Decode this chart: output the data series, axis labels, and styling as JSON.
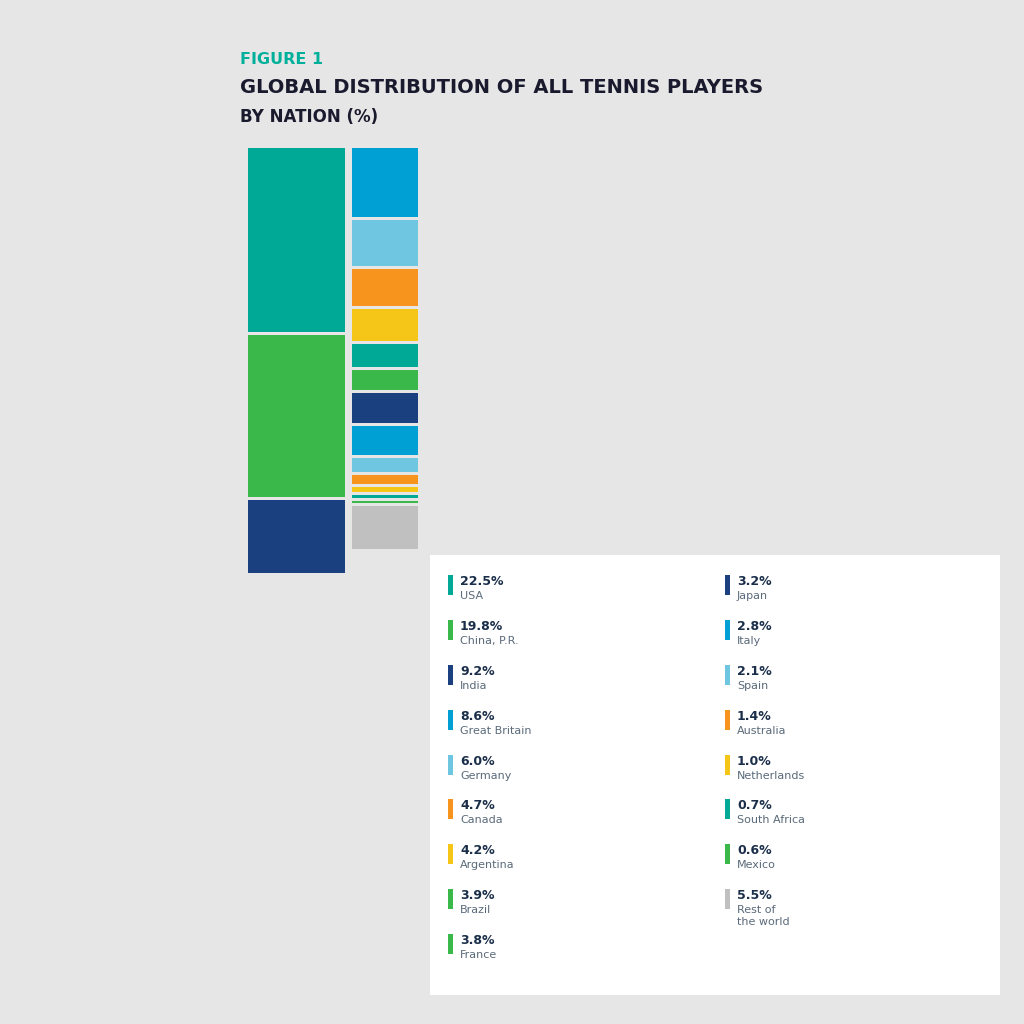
{
  "title_figure": "FIGURE 1",
  "title_main": "GLOBAL DISTRIBUTION OF ALL TENNIS PLAYERS",
  "title_sub": "BY NATION (%)",
  "background_color": "#e6e6e6",
  "left_col": [
    {
      "name": "USA",
      "value": 22.5,
      "color": "#00A896"
    },
    {
      "name": "China, P.R.",
      "value": 19.8,
      "color": "#3BB84A"
    },
    {
      "name": "India",
      "value": 9.2,
      "color": "#1B4080"
    }
  ],
  "right_col": [
    {
      "name": "Great Britain",
      "value": 8.6,
      "color": "#009FD4"
    },
    {
      "name": "Germany",
      "value": 6.0,
      "color": "#6EC6E0"
    },
    {
      "name": "Canada",
      "value": 4.7,
      "color": "#F7941D"
    },
    {
      "name": "Argentina",
      "value": 4.2,
      "color": "#F5C518"
    },
    {
      "name": "Japan",
      "value": 3.2,
      "color": "#00A896"
    },
    {
      "name": "Italy",
      "value": 2.8,
      "color": "#3BB84A"
    },
    {
      "name": "Brazil",
      "value": 3.9,
      "color": "#1B4080"
    },
    {
      "name": "France",
      "value": 3.8,
      "color": "#009FD4"
    },
    {
      "name": "Spain",
      "value": 2.1,
      "color": "#6EC6E0"
    },
    {
      "name": "Australia",
      "value": 1.4,
      "color": "#F7941D"
    },
    {
      "name": "Netherlands",
      "value": 1.0,
      "color": "#F5C518"
    },
    {
      "name": "South Africa",
      "value": 0.7,
      "color": "#00A896"
    },
    {
      "name": "Mexico",
      "value": 0.6,
      "color": "#3BB84A"
    },
    {
      "name": "Rest of the world",
      "value": 5.5,
      "color": "#C0C0C0"
    }
  ],
  "legend_col1": [
    {
      "pct": "22.5%",
      "name": "USA",
      "color": "#00A896"
    },
    {
      "pct": "19.8%",
      "name": "China, P.R.",
      "color": "#3BB84A"
    },
    {
      "pct": "9.2%",
      "name": "India",
      "color": "#1B4080"
    },
    {
      "pct": "8.6%",
      "name": "Great Britain",
      "color": "#009FD4"
    },
    {
      "pct": "6.0%",
      "name": "Germany",
      "color": "#6EC6E0"
    },
    {
      "pct": "4.7%",
      "name": "Canada",
      "color": "#F7941D"
    },
    {
      "pct": "4.2%",
      "name": "Argentina",
      "color": "#F5C518"
    },
    {
      "pct": "3.9%",
      "name": "Brazil",
      "color": "#3BB84A"
    },
    {
      "pct": "3.8%",
      "name": "France",
      "color": "#3BB84A"
    }
  ],
  "legend_col2": [
    {
      "pct": "3.2%",
      "name": "Japan",
      "color": "#1B4080"
    },
    {
      "pct": "2.8%",
      "name": "Italy",
      "color": "#009FD4"
    },
    {
      "pct": "2.1%",
      "name": "Spain",
      "color": "#6EC6E0"
    },
    {
      "pct": "1.4%",
      "name": "Australia",
      "color": "#F7941D"
    },
    {
      "pct": "1.0%",
      "name": "Netherlands",
      "color": "#F5C518"
    },
    {
      "pct": "0.7%",
      "name": "South Africa",
      "color": "#00A896"
    },
    {
      "pct": "0.6%",
      "name": "Mexico",
      "color": "#3BB84A"
    },
    {
      "pct": "5.5%",
      "name": "Rest of\nthe world",
      "color": "#C0C0C0"
    }
  ]
}
